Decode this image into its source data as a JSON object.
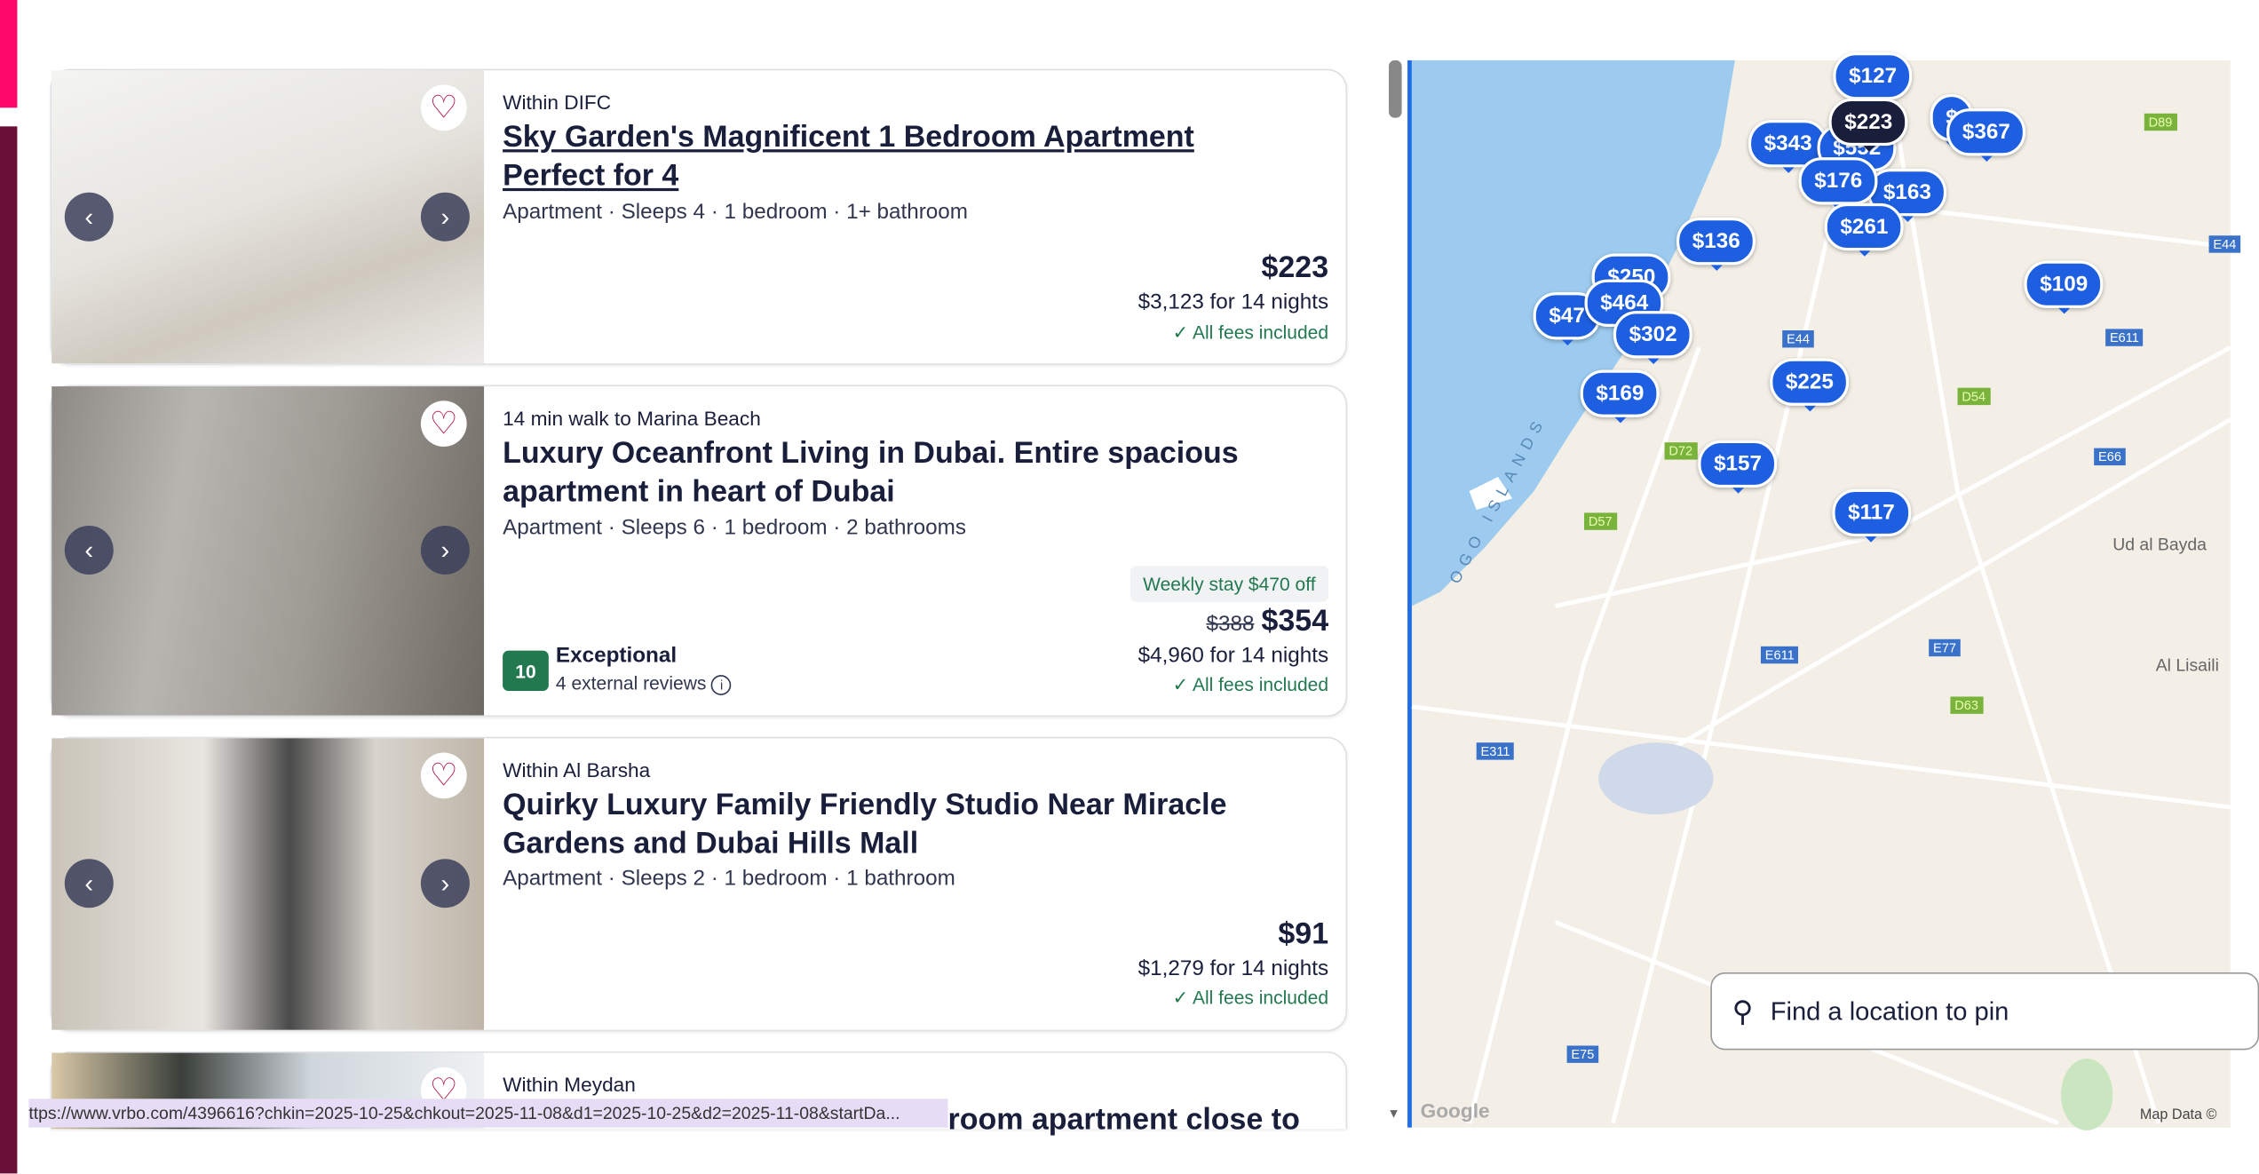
{
  "listings": [
    {
      "location": "Within DIFC",
      "title": "Sky Garden's Magnificent 1 Bedroom Apartment Perfect for 4",
      "meta": "Apartment · Sleeps 4 · 1 bedroom · 1+ bathroom",
      "price": "$223",
      "total": "$3,123 for 14 nights",
      "fees": "✓ All fees included"
    },
    {
      "location": "14 min walk to Marina Beach",
      "title": "Luxury Oceanfront Living in Dubai. Entire spacious apartment in heart of Dubai",
      "meta": "Apartment · Sleeps 6 · 1 bedroom · 2 bathrooms",
      "deal": "Weekly stay $470 off",
      "old_price": "$388",
      "price": "$354",
      "total": "$4,960 for 14 nights",
      "fees": "✓ All fees included",
      "rating_score": "10",
      "rating_label": "Exceptional",
      "reviews": "4 external reviews"
    },
    {
      "location": "Within Al Barsha",
      "title": "Quirky Luxury Family Friendly Studio Near Miracle Gardens and Dubai Hills Mall",
      "meta": "Apartment · Sleeps 2 · 1 bedroom · 1 bathroom",
      "price": "$91",
      "total": "$1,279 for 14 nights",
      "fees": "✓ All fees included"
    },
    {
      "location": "Within Meydan",
      "title_partial": "room apartment close to"
    }
  ],
  "status_url": "ttps://www.vrbo.com/4396616?chkin=2025-10-25&chkout=2025-11-08&d1=2025-10-25&d2=2025-11-08&startDa...",
  "map": {
    "pins": [
      "$127",
      "$223",
      "$343",
      "$552",
      "$",
      "$367",
      "$176",
      "$163",
      "$261",
      "$136",
      "$250",
      "$464",
      "$47",
      "$302",
      "$169",
      "$225",
      "$157",
      "$117",
      "$109"
    ],
    "selected_pin": "$223",
    "labels": {
      "ud_al_bayda": "Ud al Bayda",
      "al_lisaili": "Al Lisaili",
      "islands": "OGO ISLANDS",
      "google": "Google",
      "map_data": "Map Data ©"
    },
    "shields": [
      "D89",
      "E44",
      "E611",
      "D54",
      "D72",
      "D57",
      "E66",
      "E77",
      "E611",
      "D63",
      "E311",
      "E75",
      "E44"
    ],
    "search_placeholder": "Find a location to pin"
  },
  "colors": {
    "accent_pin": "#1d5fe0",
    "selected_pin": "#191e3b",
    "rating": "#227950",
    "brand_pink": "#ff0a6c"
  }
}
